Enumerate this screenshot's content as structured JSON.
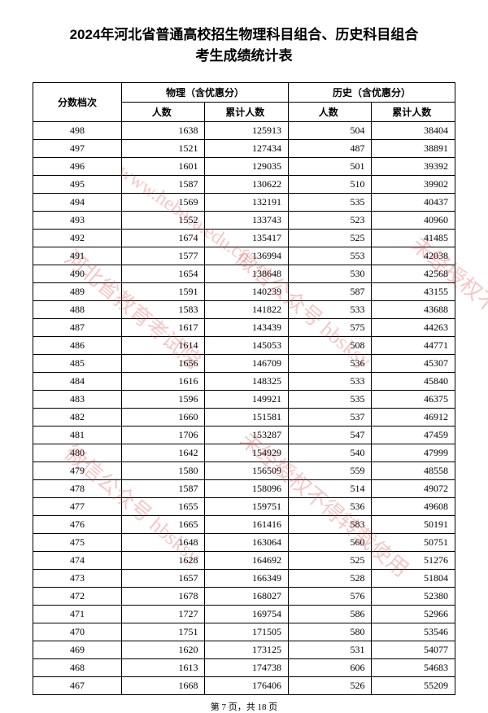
{
  "title_line1": "2024年河北省普通高校招生物理科目组合、历史科目组合",
  "title_line2": "考生成绩统计表",
  "header": {
    "score": "分数档次",
    "physics": "物理（含优惠分）",
    "history": "历史（含优惠分）",
    "count": "人数",
    "cumulative": "累计人数"
  },
  "watermarks": {
    "text1": "河北省教育考试院",
    "text2": "www.hebeea.edu.cn",
    "text3": "微信公众号 hbsksy",
    "text4": "未经授权不得转载使用",
    "url": "www.hebeea.edu.cn hbsksy"
  },
  "footer": "第 7 页，共 18 页",
  "rows": [
    {
      "score": "498",
      "pc": "1638",
      "pcc": "125913",
      "hc": "504",
      "hcc": "38404"
    },
    {
      "score": "497",
      "pc": "1521",
      "pcc": "127434",
      "hc": "487",
      "hcc": "38891"
    },
    {
      "score": "496",
      "pc": "1601",
      "pcc": "129035",
      "hc": "501",
      "hcc": "39392"
    },
    {
      "score": "495",
      "pc": "1587",
      "pcc": "130622",
      "hc": "510",
      "hcc": "39902"
    },
    {
      "score": "494",
      "pc": "1569",
      "pcc": "132191",
      "hc": "535",
      "hcc": "40437"
    },
    {
      "score": "493",
      "pc": "1552",
      "pcc": "133743",
      "hc": "523",
      "hcc": "40960"
    },
    {
      "score": "492",
      "pc": "1674",
      "pcc": "135417",
      "hc": "525",
      "hcc": "41485"
    },
    {
      "score": "491",
      "pc": "1577",
      "pcc": "136994",
      "hc": "553",
      "hcc": "42038"
    },
    {
      "score": "490",
      "pc": "1654",
      "pcc": "138648",
      "hc": "530",
      "hcc": "42568"
    },
    {
      "score": "489",
      "pc": "1591",
      "pcc": "140239",
      "hc": "587",
      "hcc": "43155"
    },
    {
      "score": "488",
      "pc": "1583",
      "pcc": "141822",
      "hc": "533",
      "hcc": "43688"
    },
    {
      "score": "487",
      "pc": "1617",
      "pcc": "143439",
      "hc": "575",
      "hcc": "44263"
    },
    {
      "score": "486",
      "pc": "1614",
      "pcc": "145053",
      "hc": "508",
      "hcc": "44771"
    },
    {
      "score": "485",
      "pc": "1656",
      "pcc": "146709",
      "hc": "536",
      "hcc": "45307"
    },
    {
      "score": "484",
      "pc": "1616",
      "pcc": "148325",
      "hc": "533",
      "hcc": "45840"
    },
    {
      "score": "483",
      "pc": "1596",
      "pcc": "149921",
      "hc": "535",
      "hcc": "46375"
    },
    {
      "score": "482",
      "pc": "1660",
      "pcc": "151581",
      "hc": "537",
      "hcc": "46912"
    },
    {
      "score": "481",
      "pc": "1706",
      "pcc": "153287",
      "hc": "547",
      "hcc": "47459"
    },
    {
      "score": "480",
      "pc": "1642",
      "pcc": "154929",
      "hc": "540",
      "hcc": "47999"
    },
    {
      "score": "479",
      "pc": "1580",
      "pcc": "156509",
      "hc": "559",
      "hcc": "48558"
    },
    {
      "score": "478",
      "pc": "1587",
      "pcc": "158096",
      "hc": "514",
      "hcc": "49072"
    },
    {
      "score": "477",
      "pc": "1655",
      "pcc": "159751",
      "hc": "536",
      "hcc": "49608"
    },
    {
      "score": "476",
      "pc": "1665",
      "pcc": "161416",
      "hc": "583",
      "hcc": "50191"
    },
    {
      "score": "475",
      "pc": "1648",
      "pcc": "163064",
      "hc": "560",
      "hcc": "50751"
    },
    {
      "score": "474",
      "pc": "1628",
      "pcc": "164692",
      "hc": "525",
      "hcc": "51276"
    },
    {
      "score": "473",
      "pc": "1657",
      "pcc": "166349",
      "hc": "528",
      "hcc": "51804"
    },
    {
      "score": "472",
      "pc": "1678",
      "pcc": "168027",
      "hc": "576",
      "hcc": "52380"
    },
    {
      "score": "471",
      "pc": "1727",
      "pcc": "169754",
      "hc": "586",
      "hcc": "52966"
    },
    {
      "score": "470",
      "pc": "1751",
      "pcc": "171505",
      "hc": "580",
      "hcc": "53546"
    },
    {
      "score": "469",
      "pc": "1620",
      "pcc": "173125",
      "hc": "531",
      "hcc": "54077"
    },
    {
      "score": "468",
      "pc": "1613",
      "pcc": "174738",
      "hc": "606",
      "hcc": "54683"
    },
    {
      "score": "467",
      "pc": "1668",
      "pcc": "176406",
      "hc": "526",
      "hcc": "55209"
    }
  ]
}
